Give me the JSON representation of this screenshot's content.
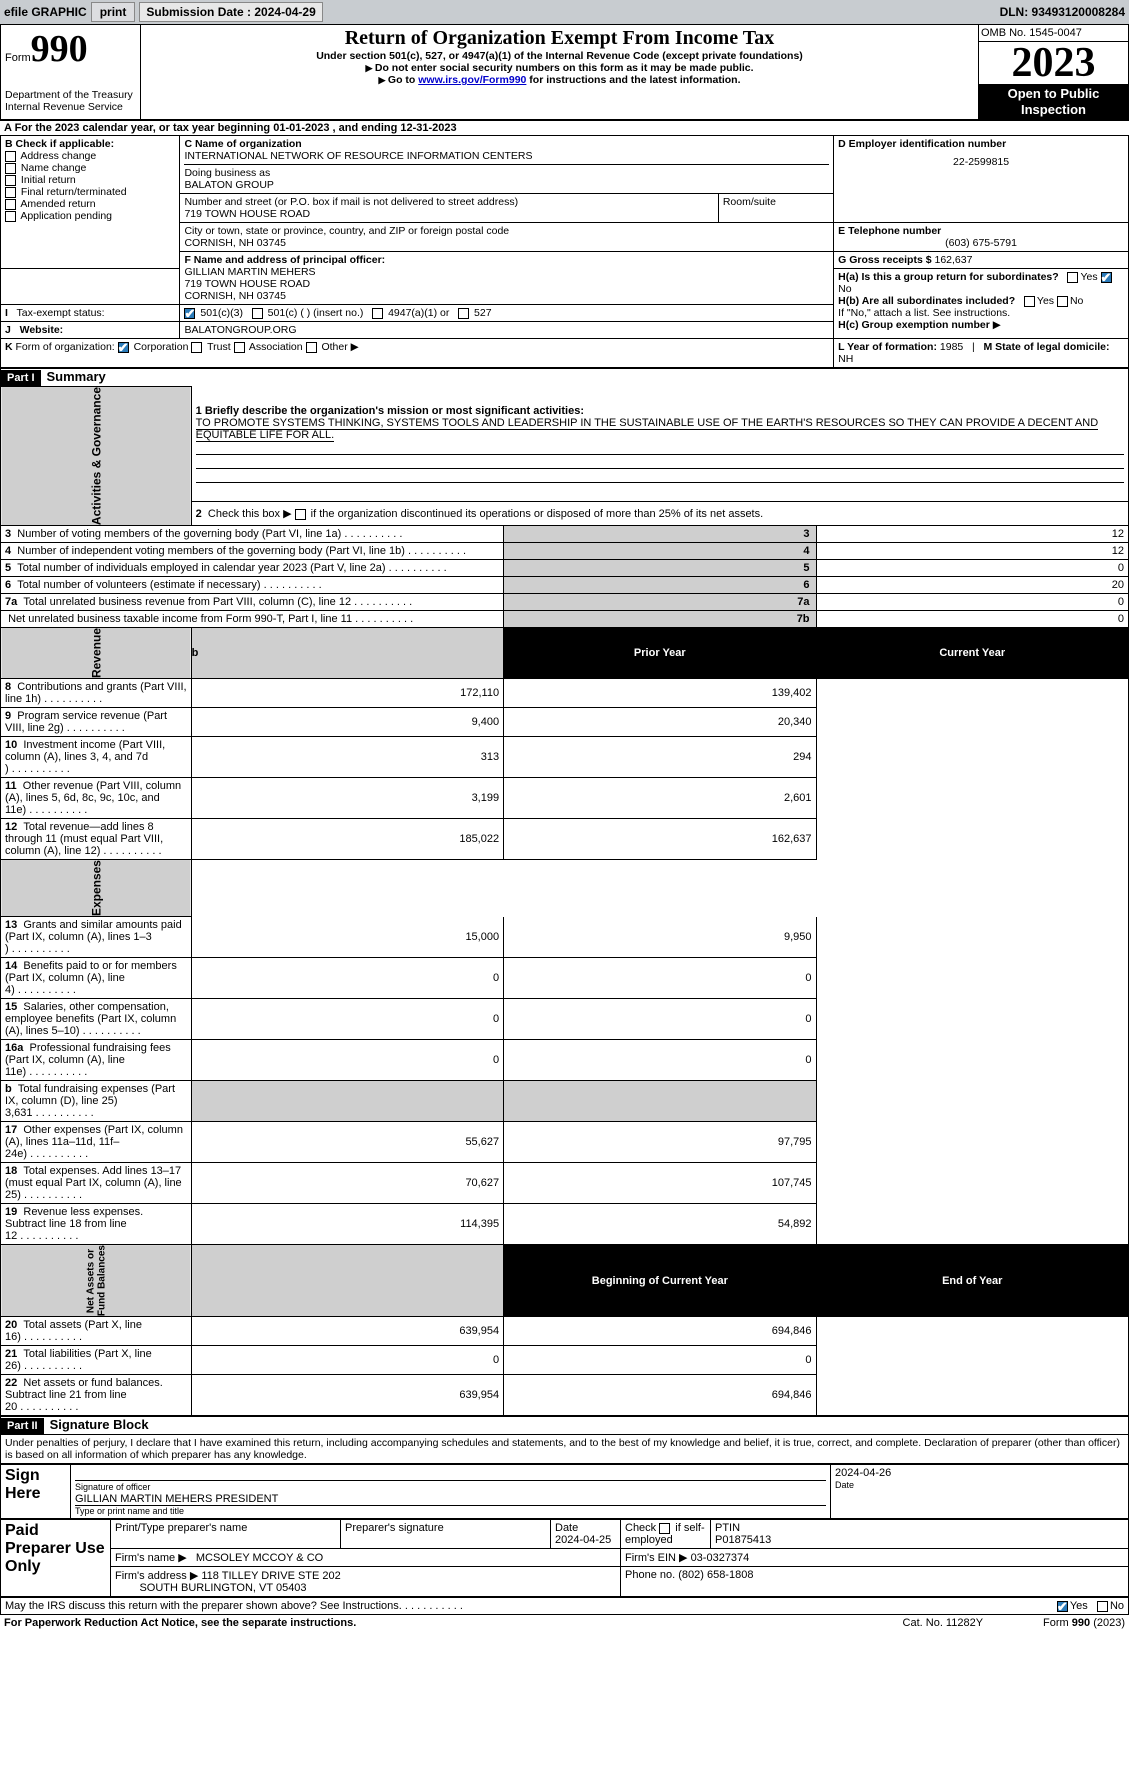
{
  "colors": {
    "bar_grey": "#c8ccd0",
    "cell_grey": "#cfcfcf",
    "black": "#000000",
    "link": "#0000cc",
    "check_blue": "#2b7bb9"
  },
  "top": {
    "efile": "efile GRAPHIC",
    "print": "print",
    "sub_label": "Submission Date : 2024-04-29",
    "dln": "DLN: 93493120008284"
  },
  "header": {
    "form_word": "Form",
    "form_no": "990",
    "title": "Return of Organization Exempt From Income Tax",
    "sub1": "Under section 501(c), 527, or 4947(a)(1) of the Internal Revenue Code (except private foundations)",
    "sub2": "Do not enter social security numbers on this form as it may be made public.",
    "sub3_pre": "Go to ",
    "sub3_link": "www.irs.gov/Form990",
    "sub3_post": " for instructions and the latest information.",
    "dept": "Department of the Treasury\nInternal Revenue Service",
    "omb": "OMB No. 1545-0047",
    "year": "2023",
    "open": "Open to Public\nInspection"
  },
  "sectionA": {
    "text_pre": "A For the 2023 calendar year, or tax year beginning ",
    "begin": "01-01-2023",
    "mid": " , and ending ",
    "end": "12-31-2023"
  },
  "boxB": {
    "title": "B Check if applicable:",
    "items": [
      "Address change",
      "Name change",
      "Initial return",
      "Final return/terminated",
      "Amended return",
      "Application pending"
    ]
  },
  "boxC": {
    "lblC": "C Name of organization",
    "name": "INTERNATIONAL NETWORK OF RESOURCE INFORMATION CENTERS",
    "dba_lbl": "Doing business as",
    "dba": "BALATON GROUP",
    "street_lbl": "Number and street (or P.O. box if mail is not delivered to street address)",
    "room_lbl": "Room/suite",
    "street": "719 TOWN HOUSE ROAD",
    "city_lbl": "City or town, state or province, country, and ZIP or foreign postal code",
    "city": "CORNISH, NH  03745"
  },
  "boxD": {
    "lbl": "D Employer identification number",
    "val": "22-2599815"
  },
  "boxE": {
    "lbl": "E Telephone number",
    "val": "(603) 675-5791"
  },
  "boxG": {
    "lbl": "G Gross receipts $",
    "val": "162,637"
  },
  "boxF": {
    "lbl": "F Name and address of principal officer:",
    "name": "GILLIAN MARTIN MEHERS",
    "addr1": "719 TOWN HOUSE ROAD",
    "addr2": "CORNISH, NH  03745"
  },
  "boxH": {
    "ha": "H(a)  Is this a group return for subordinates?",
    "hb": "H(b)  Are all subordinates included?",
    "hb_note": "If \"No,\" attach a list. See instructions.",
    "hc": "H(c)  Group exemption number",
    "yes": "Yes",
    "no": "No"
  },
  "rowI": {
    "lbl": "Tax-exempt status:",
    "c3": "501(c)(3)",
    "c": "501(c) (  ) (insert no.)",
    "c4947": "4947(a)(1) or",
    "c527": "527"
  },
  "rowJ": {
    "lbl": "Website:",
    "val": "BALATONGROUP.ORG"
  },
  "rowK": {
    "lbl": "Form of organization:",
    "corp": "Corporation",
    "trust": "Trust",
    "assoc": "Association",
    "other": "Other"
  },
  "rowL": {
    "lbl": "L Year of formation:",
    "val": "1985"
  },
  "rowM": {
    "lbl": "M State of legal domicile:",
    "val": "NH"
  },
  "part1": {
    "bar": "Part I",
    "title": "Summary"
  },
  "summary": {
    "q1_lbl": "1  Briefly describe the organization's mission or most significant activities:",
    "q1_val": "TO PROMOTE SYSTEMS THINKING, SYSTEMS TOOLS AND LEADERSHIP IN THE SUSTAINABLE USE OF THE EARTH'S RESOURCES SO THEY CAN PROVIDE A DECENT AND EQUITABLE LIFE FOR ALL.",
    "q2": "Check this box      if the organization discontinued its operations or disposed of more than 25% of its net assets.",
    "rows_ag": [
      {
        "n": "3",
        "t": "Number of voting members of the governing body (Part VI, line 1a)",
        "k": "3",
        "v": "12"
      },
      {
        "n": "4",
        "t": "Number of independent voting members of the governing body (Part VI, line 1b)",
        "k": "4",
        "v": "12"
      },
      {
        "n": "5",
        "t": "Total number of individuals employed in calendar year 2023 (Part V, line 2a)",
        "k": "5",
        "v": "0"
      },
      {
        "n": "6",
        "t": "Total number of volunteers (estimate if necessary)",
        "k": "6",
        "v": "20"
      },
      {
        "n": "7a",
        "t": "Total unrelated business revenue from Part VIII, column (C), line 12",
        "k": "7a",
        "v": "0"
      },
      {
        "n": "",
        "t": "Net unrelated business taxable income from Form 990-T, Part I, line 11",
        "k": "7b",
        "v": "0"
      }
    ],
    "col_prior": "Prior Year",
    "col_curr": "Current Year",
    "rev": [
      {
        "n": "8",
        "t": "Contributions and grants (Part VIII, line 1h)",
        "p": "172,110",
        "c": "139,402"
      },
      {
        "n": "9",
        "t": "Program service revenue (Part VIII, line 2g)",
        "p": "9,400",
        "c": "20,340"
      },
      {
        "n": "10",
        "t": "Investment income (Part VIII, column (A), lines 3, 4, and 7d )",
        "p": "313",
        "c": "294"
      },
      {
        "n": "11",
        "t": "Other revenue (Part VIII, column (A), lines 5, 6d, 8c, 9c, 10c, and 11e)",
        "p": "3,199",
        "c": "2,601"
      },
      {
        "n": "12",
        "t": "Total revenue—add lines 8 through 11 (must equal Part VIII, column (A), line 12)",
        "p": "185,022",
        "c": "162,637"
      }
    ],
    "exp": [
      {
        "n": "13",
        "t": "Grants and similar amounts paid (Part IX, column (A), lines 1–3 )",
        "p": "15,000",
        "c": "9,950"
      },
      {
        "n": "14",
        "t": "Benefits paid to or for members (Part IX, column (A), line 4)",
        "p": "0",
        "c": "0"
      },
      {
        "n": "15",
        "t": "Salaries, other compensation, employee benefits (Part IX, column (A), lines 5–10)",
        "p": "0",
        "c": "0"
      },
      {
        "n": "16a",
        "t": "Professional fundraising fees (Part IX, column (A), line 11e)",
        "p": "0",
        "c": "0"
      },
      {
        "n": "b",
        "t": "Total fundraising expenses (Part IX, column (D), line 25) 3,631",
        "p": "",
        "c": "",
        "grey": true
      },
      {
        "n": "17",
        "t": "Other expenses (Part IX, column (A), lines 11a–11d, 11f–24e)",
        "p": "55,627",
        "c": "97,795"
      },
      {
        "n": "18",
        "t": "Total expenses. Add lines 13–17 (must equal Part IX, column (A), line 25)",
        "p": "70,627",
        "c": "107,745"
      },
      {
        "n": "19",
        "t": "Revenue less expenses. Subtract line 18 from line 12",
        "p": "114,395",
        "c": "54,892"
      }
    ],
    "col_begin": "Beginning of Current Year",
    "col_end": "End of Year",
    "net": [
      {
        "n": "20",
        "t": "Total assets (Part X, line 16)",
        "p": "639,954",
        "c": "694,846"
      },
      {
        "n": "21",
        "t": "Total liabilities (Part X, line 26)",
        "p": "0",
        "c": "0"
      },
      {
        "n": "22",
        "t": "Net assets or fund balances. Subtract line 21 from line 20",
        "p": "639,954",
        "c": "694,846"
      }
    ],
    "vlabels": {
      "ag": "Activities & Governance",
      "rev": "Revenue",
      "exp": "Expenses",
      "net": "Net Assets or\nFund Balances"
    }
  },
  "part2": {
    "bar": "Part II",
    "title": "Signature Block",
    "decl": "Under penalties of perjury, I declare that I have examined this return, including accompanying schedules and statements, and to the best of my knowledge and belief, it is true, correct, and complete. Declaration of preparer (other than officer) is based on all information of which preparer has any knowledge."
  },
  "sign": {
    "here": "Sign Here",
    "sig_lbl": "Signature of officer",
    "date_lbl": "Date",
    "date": "2024-04-26",
    "officer": "GILLIAN MARTIN MEHERS  PRESIDENT",
    "type_lbl": "Type or print name and title"
  },
  "paid": {
    "here": "Paid Preparer Use Only",
    "p_name_lbl": "Print/Type preparer's name",
    "p_sig_lbl": "Preparer's signature",
    "p_date_lbl": "Date",
    "p_date": "2024-04-25",
    "chk_lbl": "Check      if self-employed",
    "ptin_lbl": "PTIN",
    "ptin": "P01875413",
    "firm_name_lbl": "Firm's name",
    "firm_name": "MCSOLEY MCCOY & CO",
    "firm_ein_lbl": "Firm's EIN",
    "firm_ein": "03-0327374",
    "firm_addr_lbl": "Firm's address",
    "firm_addr1": "118 TILLEY DRIVE STE 202",
    "firm_addr2": "SOUTH BURLINGTON, VT  05403",
    "phone_lbl": "Phone no.",
    "phone": "(802) 658-1808"
  },
  "discuss": {
    "t": "May the IRS discuss this return with the preparer shown above? See Instructions.",
    "yes": "Yes",
    "no": "No"
  },
  "footer": {
    "pra": "For Paperwork Reduction Act Notice, see the separate instructions.",
    "cat": "Cat. No. 11282Y",
    "form": "Form 990 (2023)"
  }
}
